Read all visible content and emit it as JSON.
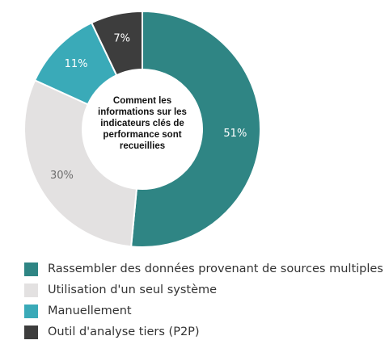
{
  "chart_data": {
    "type": "pie",
    "title": "Comment les informations sur les indicateurs clés de performance sont recueillies",
    "categories": [
      "Rassembler des données provenant de sources multiples",
      "Utilisation d'un seul système",
      "Manuellement",
      "Outil d'analyse tiers (P2P)"
    ],
    "values": [
      51,
      30,
      11,
      7
    ],
    "value_labels": [
      "51%",
      "30%",
      "11%",
      "7%"
    ],
    "colors": [
      "#2f8584",
      "#e3e1e1",
      "#3aaab8",
      "#3d3d3d"
    ],
    "label_colors": [
      "#ffffff",
      "#6d6d6d",
      "#ffffff",
      "#ffffff"
    ],
    "legend_position": "bottom",
    "donut": true
  }
}
